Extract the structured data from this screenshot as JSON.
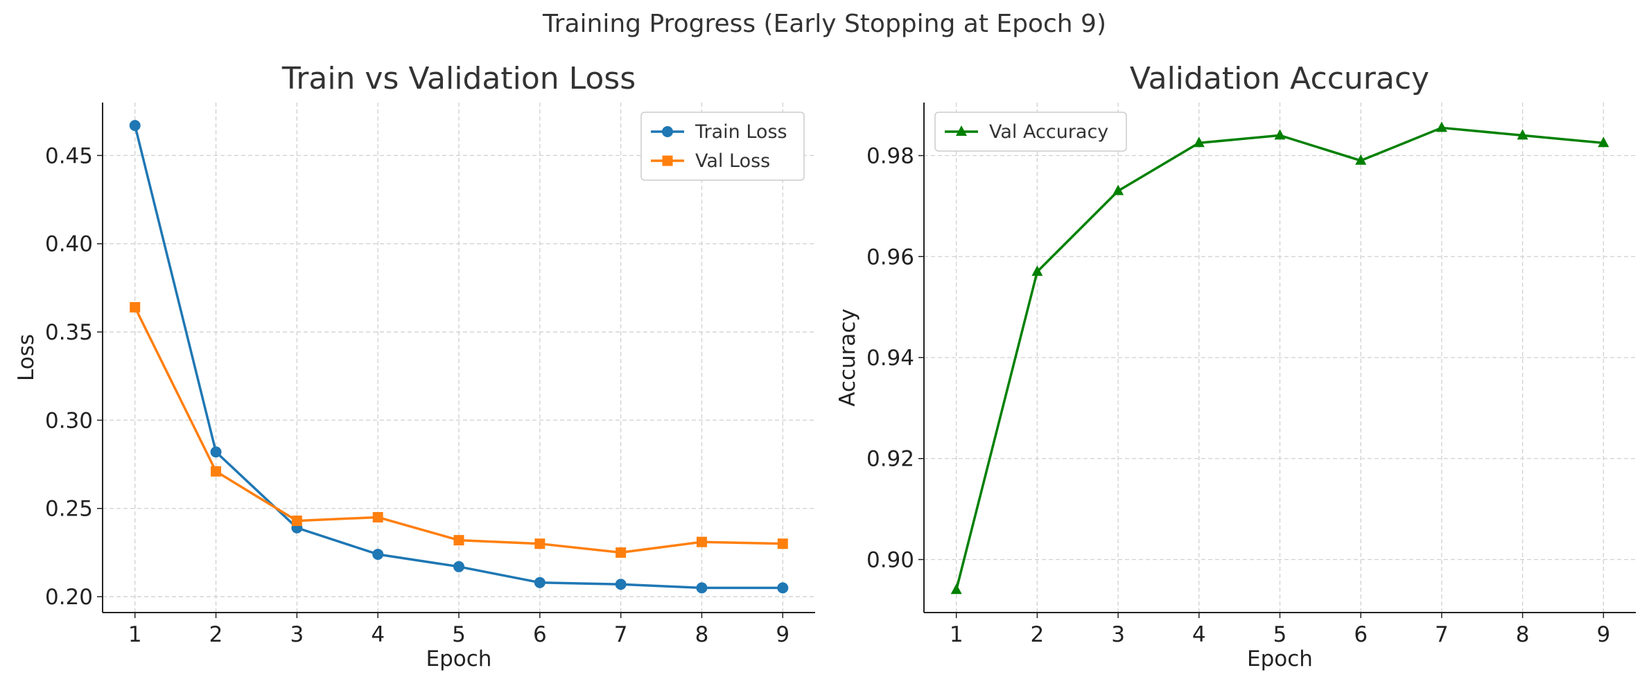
{
  "figure": {
    "suptitle": "Training Progress (Early Stopping at Epoch 9)"
  },
  "chart_data": [
    {
      "type": "line",
      "title": "Train vs Validation Loss",
      "xlabel": "Epoch",
      "ylabel": "Loss",
      "x": [
        1,
        2,
        3,
        4,
        5,
        6,
        7,
        8,
        9
      ],
      "xlim": [
        0.6,
        9.4
      ],
      "ylim": [
        0.191,
        0.48
      ],
      "xticks": [
        1,
        2,
        3,
        4,
        5,
        6,
        7,
        8,
        9
      ],
      "yticks": [
        0.2,
        0.25,
        0.3,
        0.35,
        0.4,
        0.45
      ],
      "ytick_labels": [
        "0.20",
        "0.25",
        "0.30",
        "0.35",
        "0.40",
        "0.45"
      ],
      "grid": true,
      "legend_position": "upper right",
      "series": [
        {
          "name": "Train Loss",
          "color": "#1f77b4",
          "marker": "circle",
          "values": [
            0.467,
            0.282,
            0.239,
            0.224,
            0.217,
            0.208,
            0.207,
            0.205,
            0.205
          ]
        },
        {
          "name": "Val Loss",
          "color": "#ff7f0e",
          "marker": "square",
          "values": [
            0.364,
            0.271,
            0.243,
            0.245,
            0.232,
            0.23,
            0.225,
            0.231,
            0.23
          ]
        }
      ]
    },
    {
      "type": "line",
      "title": "Validation Accuracy",
      "xlabel": "Epoch",
      "ylabel": "Accuracy",
      "x": [
        1,
        2,
        3,
        4,
        5,
        6,
        7,
        8,
        9
      ],
      "xlim": [
        0.6,
        9.4
      ],
      "ylim": [
        0.8895,
        0.9905
      ],
      "xticks": [
        1,
        2,
        3,
        4,
        5,
        6,
        7,
        8,
        9
      ],
      "yticks": [
        0.9,
        0.92,
        0.94,
        0.96,
        0.98
      ],
      "ytick_labels": [
        "0.90",
        "0.92",
        "0.94",
        "0.96",
        "0.98"
      ],
      "grid": true,
      "legend_position": "upper left",
      "series": [
        {
          "name": "Val Accuracy",
          "color": "#008000",
          "marker": "triangle",
          "values": [
            0.894,
            0.957,
            0.973,
            0.9825,
            0.984,
            0.979,
            0.9855,
            0.984,
            0.9825
          ]
        }
      ]
    }
  ]
}
